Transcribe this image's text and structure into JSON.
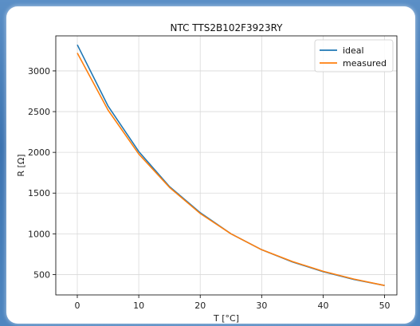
{
  "chart_data": {
    "type": "line",
    "title": "NTC TTS2B102F3923RY",
    "xlabel": "T [°C]",
    "ylabel": "R [Ω]",
    "xlim": [
      -3.5,
      52
    ],
    "ylim": [
      250,
      3430
    ],
    "xticks": [
      0,
      10,
      20,
      30,
      40,
      50
    ],
    "yticks": [
      500,
      1000,
      1500,
      2000,
      2500,
      3000
    ],
    "grid": true,
    "legend_position": "top-right",
    "series": [
      {
        "name": "ideal",
        "color": "#1f77b4",
        "x": [
          0,
          5,
          10,
          15,
          20,
          25,
          30,
          35,
          40,
          45,
          50
        ],
        "y": [
          3320,
          2570,
          2010,
          1580,
          1260,
          1000,
          805,
          655,
          535,
          440,
          365
        ]
      },
      {
        "name": "measured",
        "color": "#ff7f0e",
        "x": [
          0,
          5,
          10,
          15,
          20,
          25,
          30,
          35,
          40,
          45,
          50
        ],
        "y": [
          3220,
          2520,
          1980,
          1570,
          1250,
          1000,
          805,
          660,
          540,
          445,
          365
        ]
      }
    ]
  }
}
